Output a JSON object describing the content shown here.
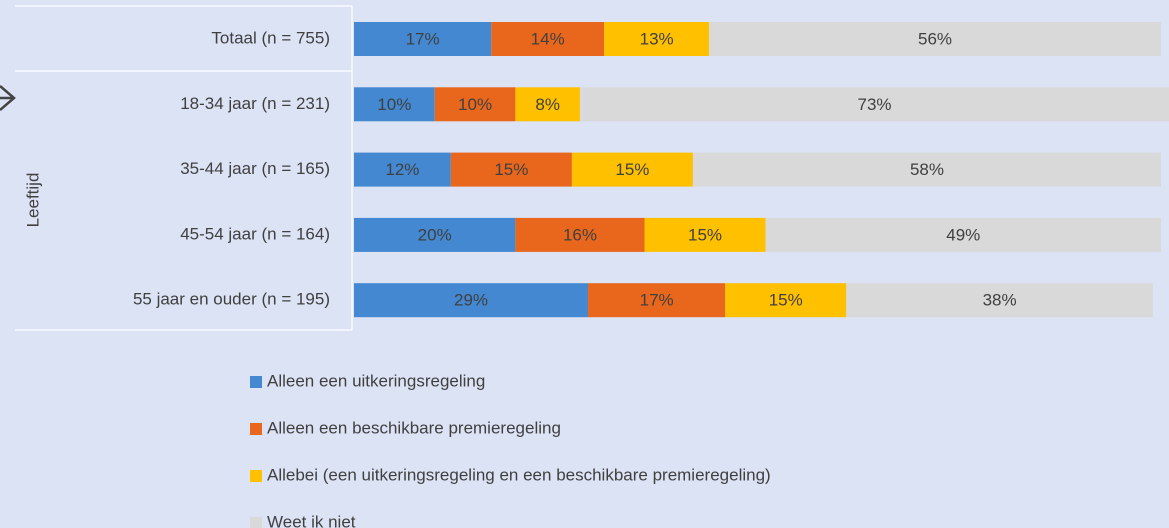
{
  "chart_data": {
    "type": "stacked-barh",
    "group_label": "Leeftijd",
    "categories": [
      "Totaal (n = 755)",
      "18-34 jaar (n = 231)",
      "35-44 jaar (n = 165)",
      "45-54 jaar (n = 164)",
      "55 jaar en ouder (n = 195)"
    ],
    "xlim": [
      0,
      100
    ],
    "series": [
      {
        "name": "Alleen een uitkeringsregeling",
        "color": "#4388d0",
        "values": [
          17,
          10,
          12,
          20,
          29
        ],
        "value_labels": [
          "17%",
          "10%",
          "12%",
          "20%",
          "29%"
        ]
      },
      {
        "name": "Alleen een beschikbare premieregeling",
        "color": "#e8671c",
        "values": [
          14,
          10,
          15,
          16,
          17
        ],
        "value_labels": [
          "14%",
          "10%",
          "15%",
          "16%",
          "17%"
        ]
      },
      {
        "name": "Allebei (een uitkeringsregeling en een beschikbare premieregeling)",
        "color": "#ffc000",
        "values": [
          13,
          8,
          15,
          15,
          15
        ],
        "value_labels": [
          "13%",
          "8%",
          "15%",
          "15%",
          "15%"
        ]
      },
      {
        "name": "Weet ik niet",
        "color": "#d9d9d9",
        "values": [
          56,
          73,
          58,
          49,
          38
        ],
        "value_labels": [
          "56%",
          "73%",
          "58%",
          "49%",
          "38%"
        ]
      }
    ],
    "legend": "bottom"
  }
}
